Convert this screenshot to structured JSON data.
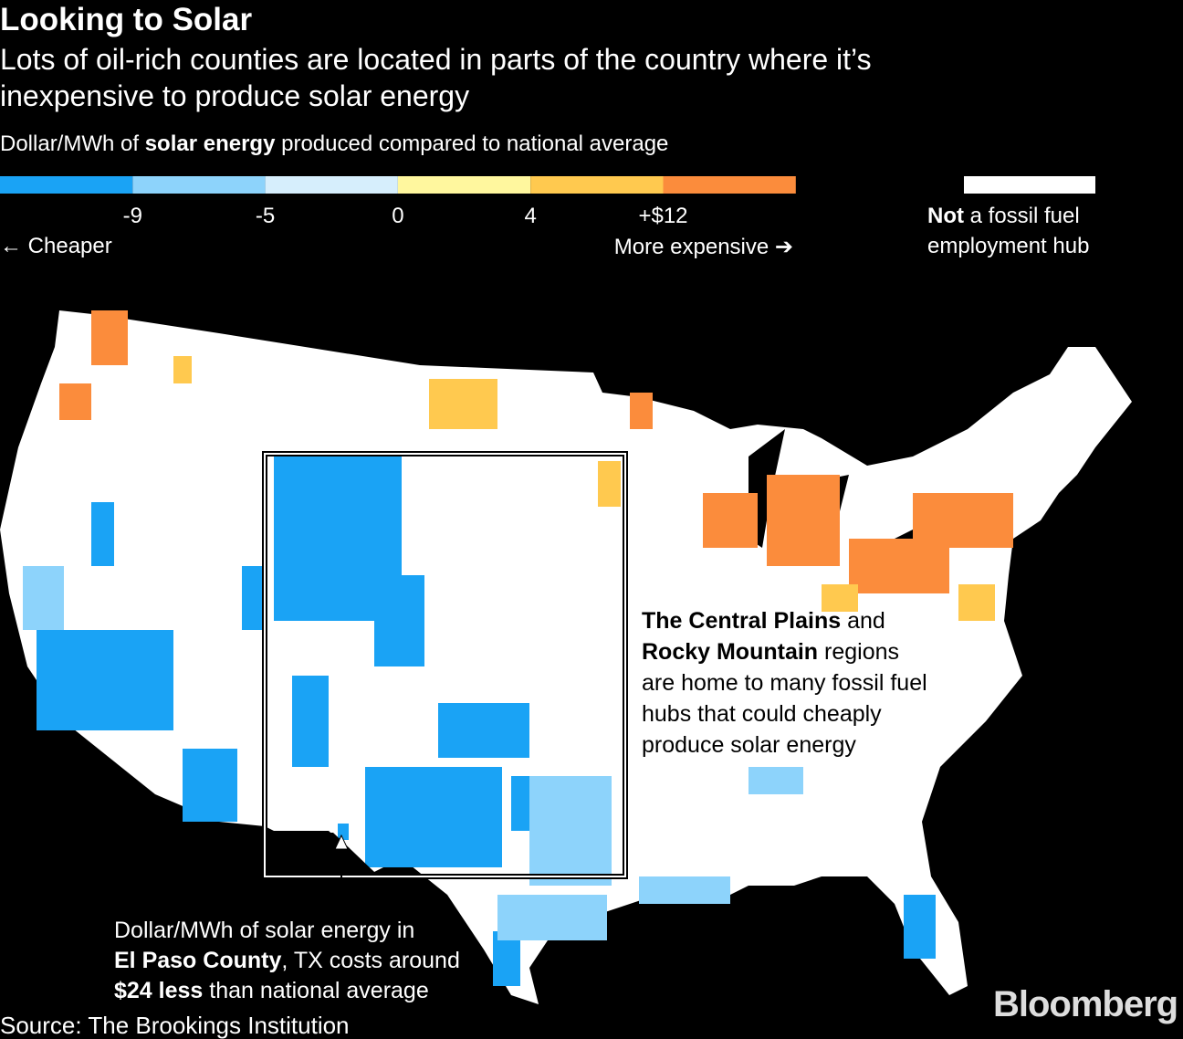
{
  "header": {
    "title": "Looking to Solar",
    "subtitle_lines": [
      "Lots of oil-rich counties are located in parts of the country where it’s",
      "inexpensive to produce solar energy"
    ],
    "legend_title": [
      "Dollar/MWh of ",
      "solar energy",
      " produced compared to national average"
    ]
  },
  "legend": {
    "colors": [
      "#1aa3f5",
      "#8dd3fb",
      "#d6eefc",
      "#fff79e",
      "#ffc94f",
      "#fb8c3c"
    ],
    "tick_labels": [
      "-9",
      "-5",
      "0",
      "4",
      "+$12"
    ],
    "left_note": "← Cheaper",
    "right_note": "More expensive ➔",
    "not_hub": [
      "Not",
      " a fossil fuel",
      "employment hub"
    ]
  },
  "annotations": {
    "plains": [
      [
        "The Central Plains",
        " and"
      ],
      [
        "Rocky Mountain",
        " regions"
      ],
      [
        "are home to many fossil fuel"
      ],
      [
        "hubs that could cheaply"
      ],
      [
        "produce solar energy"
      ]
    ],
    "el_paso": [
      [
        "Dollar/MWh of solar energy in"
      ],
      [
        "El Paso County",
        ", TX costs around"
      ],
      [
        "$24 less",
        " than national average"
      ]
    ]
  },
  "footer": {
    "source": "Source: The Brookings Institution",
    "brand": "Bloomberg"
  }
}
